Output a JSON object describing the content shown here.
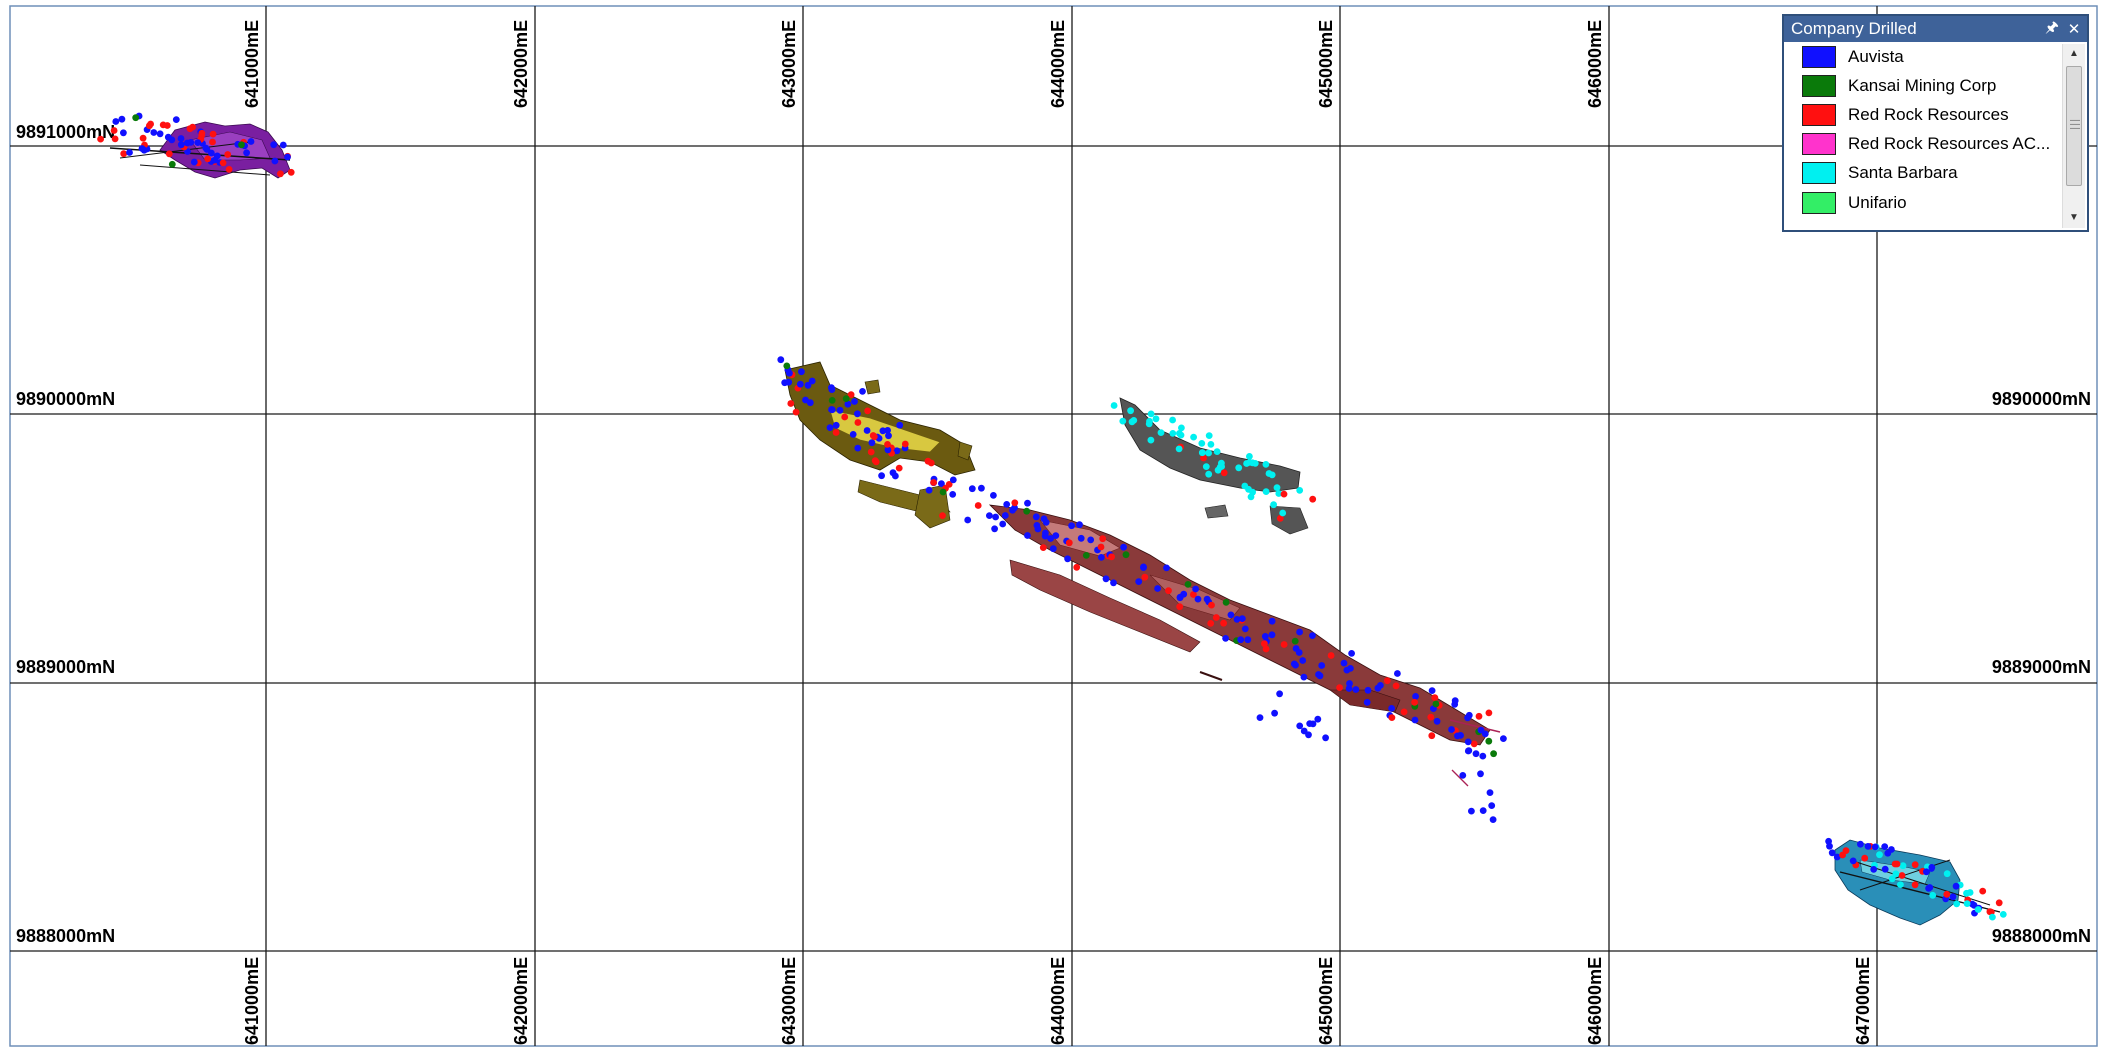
{
  "map": {
    "easting_labels": [
      "641000mE",
      "642000mE",
      "643000mE",
      "644000mE",
      "645000mE",
      "646000mE",
      "647000mE"
    ],
    "northing_labels": [
      "9891000mN",
      "9890000mN",
      "9889000mN",
      "9888000mN"
    ]
  },
  "legend": {
    "title": "Company Drilled",
    "pin_icon": "pin-icon",
    "close_icon": "close-icon",
    "items": [
      {
        "label": "Auvista",
        "color": "#1010ff"
      },
      {
        "label": "Kansai Mining Corp",
        "color": "#0a7a0a"
      },
      {
        "label": "Red Rock Resources",
        "color": "#ff1010"
      },
      {
        "label": "Red Rock Resources AC...",
        "color": "#ff33cc"
      },
      {
        "label": "Santa Barbara",
        "color": "#00f0f0"
      },
      {
        "label": "Unifario",
        "color": "#33ee66"
      }
    ]
  },
  "colors": {
    "grid": "#1a1a1a",
    "panel_header": "#3e6299",
    "body_olive": "#6b5a10",
    "body_brown": "#8a3a3a",
    "body_gray": "#555555",
    "body_purple": "#7a1fa0",
    "body_teal": "#2a8fb8"
  }
}
